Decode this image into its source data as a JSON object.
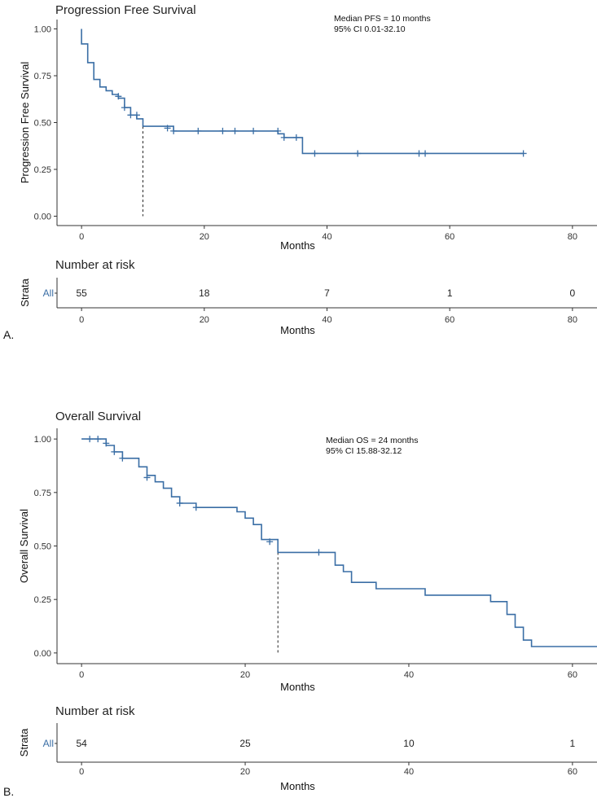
{
  "chart_data": [
    {
      "panel": "A.",
      "type": "line",
      "subtype": "kaplan-meier",
      "title": "Progression Free Survival",
      "xlabel": "Months",
      "ylabel": "Progression Free Survival",
      "xlim": [
        -4,
        84
      ],
      "ylim": [
        -0.05,
        1.05
      ],
      "xticks": [
        0,
        20,
        40,
        60,
        80
      ],
      "yticks": [
        0.0,
        0.25,
        0.5,
        0.75,
        1.0
      ],
      "ytick_labels": [
        "0.00",
        "0.25",
        "0.50",
        "0.75",
        "1.00"
      ],
      "annotation": [
        "Median PFS = 10 months",
        "95% CI 0.01-32.10"
      ],
      "median_x": 10,
      "median_y": 0.48,
      "steps": [
        [
          0,
          1.0
        ],
        [
          0,
          0.92
        ],
        [
          1,
          0.92
        ],
        [
          1,
          0.82
        ],
        [
          2,
          0.82
        ],
        [
          2,
          0.73
        ],
        [
          3,
          0.73
        ],
        [
          3,
          0.69
        ],
        [
          4,
          0.69
        ],
        [
          4,
          0.67
        ],
        [
          5,
          0.67
        ],
        [
          5,
          0.65
        ],
        [
          6,
          0.65
        ],
        [
          6,
          0.63
        ],
        [
          7,
          0.63
        ],
        [
          7,
          0.58
        ],
        [
          8,
          0.58
        ],
        [
          8,
          0.54
        ],
        [
          9,
          0.54
        ],
        [
          9,
          0.52
        ],
        [
          10,
          0.52
        ],
        [
          10,
          0.48
        ],
        [
          15,
          0.48
        ],
        [
          15,
          0.455
        ],
        [
          32,
          0.455
        ],
        [
          32,
          0.44
        ],
        [
          33,
          0.44
        ],
        [
          33,
          0.42
        ],
        [
          36,
          0.42
        ],
        [
          36,
          0.335
        ],
        [
          72,
          0.335
        ]
      ],
      "censor_x": [
        6,
        7,
        8,
        9,
        14,
        15,
        19,
        23,
        25,
        28,
        32,
        33,
        35,
        38,
        45,
        55,
        56,
        72
      ],
      "censor_y": [
        0.64,
        0.58,
        0.54,
        0.54,
        0.47,
        0.455,
        0.455,
        0.455,
        0.455,
        0.455,
        0.455,
        0.42,
        0.42,
        0.335,
        0.335,
        0.335,
        0.335,
        0.335
      ],
      "risk_title": "Number at risk",
      "strata_label": "Strata",
      "strata_name": "All",
      "risk_x": [
        0,
        20,
        40,
        60,
        80
      ],
      "risk_values": [
        "55",
        "18",
        "7",
        "1",
        "0"
      ]
    },
    {
      "panel": "B.",
      "type": "line",
      "subtype": "kaplan-meier",
      "title": "Overall Survival",
      "xlabel": "Months",
      "ylabel": "Overall Survival",
      "xlim": [
        -3,
        63
      ],
      "ylim": [
        -0.05,
        1.05
      ],
      "xticks": [
        0,
        20,
        40,
        60
      ],
      "yticks": [
        0.0,
        0.25,
        0.5,
        0.75,
        1.0
      ],
      "ytick_labels": [
        "0.00",
        "0.25",
        "0.50",
        "0.75",
        "1.00"
      ],
      "annotation": [
        "Median OS = 24 months",
        "95% CI 15.88-32.12"
      ],
      "median_x": 24,
      "median_y": 0.47,
      "steps": [
        [
          0,
          1.0
        ],
        [
          3,
          1.0
        ],
        [
          3,
          0.97
        ],
        [
          4,
          0.97
        ],
        [
          4,
          0.94
        ],
        [
          5,
          0.94
        ],
        [
          5,
          0.91
        ],
        [
          7,
          0.91
        ],
        [
          7,
          0.87
        ],
        [
          8,
          0.87
        ],
        [
          8,
          0.83
        ],
        [
          9,
          0.83
        ],
        [
          9,
          0.8
        ],
        [
          10,
          0.8
        ],
        [
          10,
          0.77
        ],
        [
          11,
          0.77
        ],
        [
          11,
          0.73
        ],
        [
          12,
          0.73
        ],
        [
          12,
          0.7
        ],
        [
          14,
          0.7
        ],
        [
          14,
          0.68
        ],
        [
          19,
          0.68
        ],
        [
          19,
          0.66
        ],
        [
          20,
          0.66
        ],
        [
          20,
          0.63
        ],
        [
          21,
          0.63
        ],
        [
          21,
          0.6
        ],
        [
          22,
          0.6
        ],
        [
          22,
          0.53
        ],
        [
          24,
          0.53
        ],
        [
          24,
          0.47
        ],
        [
          31,
          0.47
        ],
        [
          31,
          0.41
        ],
        [
          32,
          0.41
        ],
        [
          32,
          0.38
        ],
        [
          33,
          0.38
        ],
        [
          33,
          0.33
        ],
        [
          36,
          0.33
        ],
        [
          36,
          0.3
        ],
        [
          42,
          0.3
        ],
        [
          42,
          0.27
        ],
        [
          50,
          0.27
        ],
        [
          50,
          0.24
        ],
        [
          52,
          0.24
        ],
        [
          52,
          0.18
        ],
        [
          53,
          0.18
        ],
        [
          53,
          0.12
        ],
        [
          54,
          0.12
        ],
        [
          54,
          0.06
        ],
        [
          55,
          0.06
        ],
        [
          55,
          0.03
        ],
        [
          63,
          0.03
        ]
      ],
      "censor_x": [
        1,
        2,
        3,
        4,
        5,
        8,
        12,
        14,
        23,
        29
      ],
      "censor_y": [
        1.0,
        1.0,
        0.98,
        0.94,
        0.91,
        0.82,
        0.7,
        0.68,
        0.52,
        0.47
      ],
      "risk_title": "Number at risk",
      "strata_label": "Strata",
      "strata_name": "All",
      "risk_x": [
        0,
        20,
        40,
        60
      ],
      "risk_values": [
        "54",
        "25",
        "10",
        "1"
      ]
    }
  ]
}
